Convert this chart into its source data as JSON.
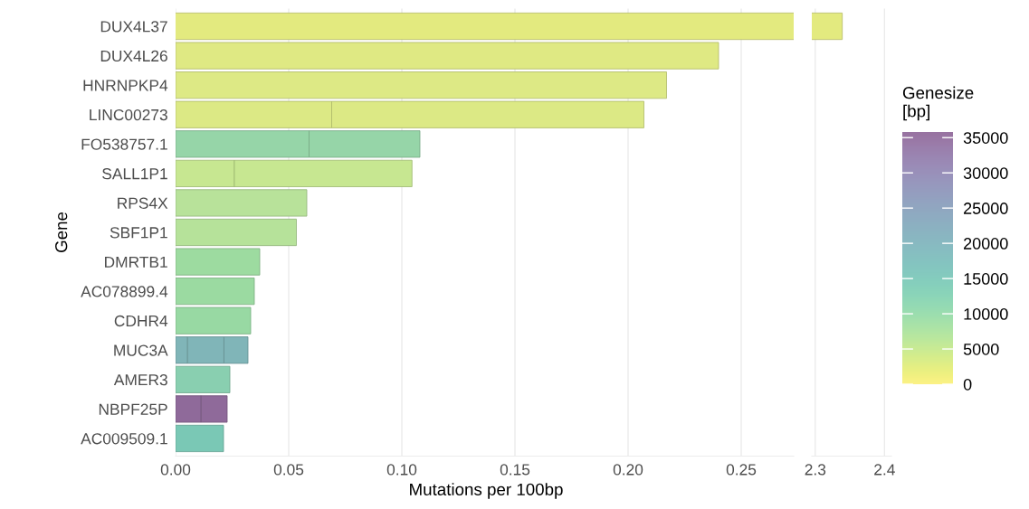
{
  "chart_data": [
    {
      "type": "bar",
      "orientation": "horizontal",
      "stacked": true,
      "ylabel": "Gene",
      "xlabel": "Mutations per 100bp",
      "categories": [
        "DUX4L37",
        "DUX4L26",
        "HNRNPKP4",
        "LINC00273",
        "FO538757.1",
        "SALL1P1",
        "RPS4X",
        "SBF1P1",
        "DMRTB1",
        "AC078899.4",
        "CDHR4",
        "MUC3A",
        "AMER3",
        "NBPF25P",
        "AC009509.1"
      ],
      "series": [
        {
          "colors": [
            null,
            "#dfe983",
            "#dde985",
            "#dce985",
            "#96d5a8",
            "#c7e791",
            "#b8e29a",
            "#b6e29a",
            "#9ddba0",
            "#9bdaa1",
            "#98d9a3",
            "#80b5b8",
            "#89cfb0",
            "#8f6a9a",
            "#7ac8b5"
          ],
          "values": [
            null,
            0.24,
            0.217,
            0.069,
            0.059,
            0.026,
            0.058,
            0.0534,
            0.0372,
            0.0348,
            0.0332,
            0.0053,
            0.024,
            0.0113,
            0.0212
          ]
        },
        {
          "colors": [
            null,
            null,
            null,
            "#dce985",
            "#96d5a8",
            "#c7e791",
            null,
            null,
            null,
            null,
            null,
            "#80b5b8",
            null,
            "#8f6a9a",
            null
          ],
          "values": [
            null,
            null,
            null,
            0.138,
            0.049,
            0.0785,
            null,
            null,
            null,
            null,
            null,
            0.0161,
            null,
            0.0115,
            null
          ]
        },
        {
          "colors": [
            null,
            null,
            null,
            null,
            null,
            null,
            null,
            null,
            null,
            null,
            null,
            "#80b5b8",
            null,
            null,
            null
          ],
          "values": [
            null,
            null,
            null,
            null,
            null,
            null,
            null,
            null,
            null,
            null,
            null,
            0.0106,
            null,
            null,
            null
          ]
        }
      ],
      "xlim": [
        0,
        0.2732
      ],
      "xticks": [
        {
          "value": 0,
          "label": "0.00"
        },
        0.05,
        {
          "value": 0.1,
          "label": "0.10"
        },
        0.15,
        {
          "value": 0.2,
          "label": "0.20"
        },
        0.25
      ],
      "grid": "x",
      "legend": false,
      "clabel": "Genesize\n[bp]",
      "clim": [
        0,
        35800
      ],
      "cticks": [
        0,
        5000,
        10000,
        15000,
        20000,
        25000,
        30000,
        35000
      ]
    },
    {
      "type": "bar",
      "orientation": "horizontal",
      "categories": [
        null,
        null,
        null,
        null,
        null,
        null,
        null,
        null,
        null,
        null,
        null,
        null,
        null,
        null,
        null
      ],
      "colors": [
        "#e3ea7f",
        null,
        null,
        null,
        null,
        null,
        null,
        null,
        null,
        null,
        null,
        null,
        null,
        null,
        null
      ],
      "values": [
        2.339,
        null,
        null,
        null,
        null,
        null,
        null,
        null,
        null,
        null,
        null,
        null,
        null,
        null,
        null
      ],
      "xlim": [
        2.295,
        2.41
      ],
      "xticks": [
        2.3,
        2.4
      ],
      "grid": "x",
      "tick_labels": "x",
      "legend": false
    }
  ]
}
